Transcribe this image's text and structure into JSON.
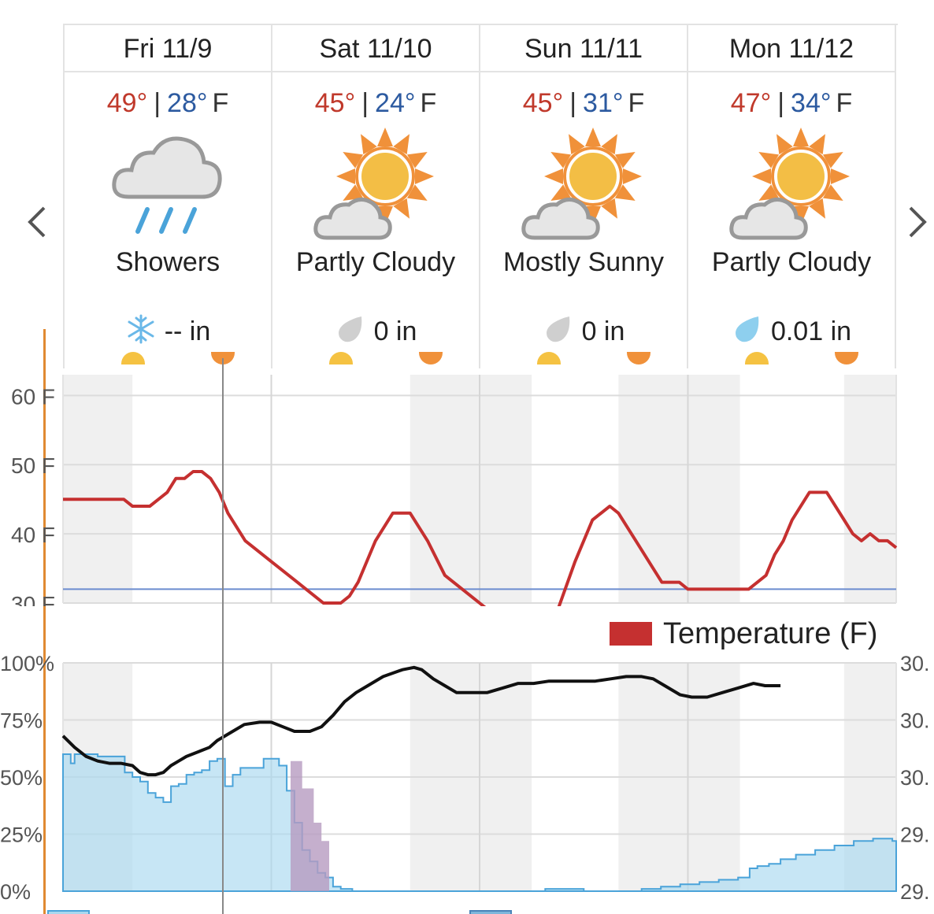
{
  "days": [
    {
      "label": "Fri 11/9",
      "hi": "49°",
      "lo": "28°",
      "unit": "F",
      "condition": "Showers",
      "icon": "cloud-rain-icon",
      "precip_icon": "snowflake-icon",
      "precip": "-- in"
    },
    {
      "label": "Sat 11/10",
      "hi": "45°",
      "lo": "24°",
      "unit": "F",
      "condition": "Partly Cloudy",
      "icon": "partly-cloudy-icon",
      "precip_icon": "drop-gray-icon",
      "precip": "0 in"
    },
    {
      "label": "Sun 11/11",
      "hi": "45°",
      "lo": "31°",
      "unit": "F",
      "condition": "Mostly Sunny",
      "icon": "mostly-sunny-icon",
      "precip_icon": "drop-gray-icon",
      "precip": "0 in"
    },
    {
      "label": "Mon 11/12",
      "hi": "47°",
      "lo": "34°",
      "unit": "F",
      "condition": "Partly Cloudy",
      "icon": "partly-cloudy-icon",
      "precip_icon": "drop-blue-icon",
      "precip": "0.01 in"
    }
  ],
  "separator": "|",
  "nav": {
    "prev": "chevron-left-icon",
    "next": "chevron-right-icon"
  },
  "colors": {
    "hi": "#c0392b",
    "lo": "#2c5aa0",
    "temp_line": "#c53030",
    "freeze_line": "#6b8ccf",
    "pressure": "#111111",
    "rain_fill": "#a9d8ef",
    "rain_stroke": "#4aa3d9",
    "snow_fill": "#b79bc0"
  },
  "legend": {
    "temperature": "Temperature (F)"
  },
  "chart_data": [
    {
      "type": "line",
      "title": "",
      "ylabels": [
        "60 F",
        "50 F",
        "40 F",
        "30 F"
      ],
      "ylim": [
        30,
        63
      ],
      "x_hours": [
        0,
        96
      ],
      "freeze_line": 32,
      "series": [
        {
          "name": "Temperature (F)",
          "points": [
            [
              0,
              45
            ],
            [
              7,
              45
            ],
            [
              8,
              44
            ],
            [
              10,
              44
            ],
            [
              12,
              46
            ],
            [
              13,
              48
            ],
            [
              14,
              48
            ],
            [
              15,
              49
            ],
            [
              16,
              49
            ],
            [
              17,
              48
            ],
            [
              18,
              46
            ],
            [
              19,
              43
            ],
            [
              21,
              39
            ],
            [
              24,
              36
            ],
            [
              27,
              33
            ],
            [
              29,
              31
            ],
            [
              30,
              30
            ],
            [
              32,
              30
            ],
            [
              33,
              31
            ],
            [
              34,
              33
            ],
            [
              36,
              39
            ],
            [
              38,
              43
            ],
            [
              40,
              43
            ],
            [
              42,
              39
            ],
            [
              44,
              34
            ],
            [
              46,
              32
            ],
            [
              48,
              30
            ],
            [
              49,
              29
            ],
            [
              null,
              null
            ],
            [
              57,
              29
            ],
            [
              59,
              36
            ],
            [
              61,
              42
            ],
            [
              63,
              44
            ],
            [
              64,
              43
            ],
            [
              66,
              39
            ],
            [
              68,
              35
            ],
            [
              69,
              33
            ],
            [
              71,
              33
            ],
            [
              72,
              32
            ],
            [
              79,
              32
            ],
            [
              81,
              34
            ],
            [
              82,
              37
            ],
            [
              83,
              39
            ],
            [
              84,
              42
            ],
            [
              86,
              46
            ],
            [
              88,
              46
            ],
            [
              90,
              42
            ],
            [
              91,
              40
            ],
            [
              92,
              39
            ],
            [
              93,
              40
            ],
            [
              94,
              39
            ],
            [
              95,
              39
            ],
            [
              96,
              38
            ]
          ]
        }
      ]
    },
    {
      "type": "area",
      "title": "",
      "ylabels": [
        "100%",
        "75%",
        "50%",
        "25%",
        "0%"
      ],
      "right_labels": [
        "30.",
        "30.",
        "30.",
        "29.",
        "29."
      ],
      "ylim": [
        0,
        100
      ],
      "x_hours": [
        0,
        96
      ],
      "series": [
        {
          "name": "pressure",
          "points": [
            [
              0,
              68
            ],
            [
              3,
              63
            ],
            [
              6,
              59
            ],
            [
              9,
              57
            ],
            [
              12,
              56
            ],
            [
              15,
              56
            ],
            [
              18,
              55
            ],
            [
              20,
              52
            ],
            [
              22,
              51
            ],
            [
              24,
              51
            ],
            [
              26,
              52
            ],
            [
              28,
              55
            ],
            [
              30,
              57
            ],
            [
              32,
              59
            ],
            [
              35,
              61
            ],
            [
              38,
              63
            ],
            [
              40,
              66
            ],
            [
              44,
              70
            ],
            [
              47,
              73
            ],
            [
              51,
              74
            ],
            [
              54,
              74
            ],
            [
              57,
              72
            ],
            [
              60,
              70
            ],
            [
              64,
              70
            ],
            [
              67,
              72
            ],
            [
              70,
              77
            ],
            [
              73,
              83
            ],
            [
              76,
              87
            ],
            [
              79,
              90
            ],
            [
              83,
              94
            ],
            [
              88,
              97
            ],
            [
              91,
              98
            ],
            [
              93,
              97
            ],
            [
              96,
              93
            ],
            [
              99,
              90
            ],
            [
              102,
              87
            ],
            [
              106,
              87
            ],
            [
              110,
              87
            ],
            [
              114,
              89
            ],
            [
              118,
              91
            ],
            [
              122,
              91
            ],
            [
              126,
              92
            ],
            [
              130,
              92
            ],
            [
              134,
              92
            ],
            [
              138,
              92
            ],
            [
              142,
              93
            ],
            [
              146,
              94
            ],
            [
              150,
              94
            ],
            [
              153,
              93
            ],
            [
              156,
              90
            ],
            [
              160,
              86
            ],
            [
              163,
              85
            ],
            [
              167,
              85
            ],
            [
              171,
              87
            ],
            [
              175,
              89
            ],
            [
              179,
              91
            ],
            [
              182,
              90
            ],
            [
              186,
              90
            ]
          ]
        },
        {
          "name": "rain",
          "points": [
            [
              0,
              60
            ],
            [
              2,
              56
            ],
            [
              3,
              60
            ],
            [
              9,
              59
            ],
            [
              15,
              59
            ],
            [
              16,
              52
            ],
            [
              18,
              50
            ],
            [
              20,
              48
            ],
            [
              22,
              43
            ],
            [
              24,
              41
            ],
            [
              26,
              39
            ],
            [
              28,
              46
            ],
            [
              30,
              47
            ],
            [
              32,
              51
            ],
            [
              34,
              52
            ],
            [
              36,
              53
            ],
            [
              38,
              57
            ],
            [
              40,
              58
            ],
            [
              42,
              46
            ],
            [
              44,
              51
            ],
            [
              46,
              54
            ],
            [
              50,
              54
            ],
            [
              52,
              58
            ],
            [
              54,
              58
            ],
            [
              56,
              55
            ],
            [
              58,
              44
            ],
            [
              60,
              30
            ],
            [
              62,
              18
            ],
            [
              64,
              13
            ],
            [
              66,
              8
            ],
            [
              68,
              6
            ],
            [
              70,
              2
            ],
            [
              72,
              1
            ],
            [
              75,
              0
            ],
            [
              120,
              0
            ],
            [
              125,
              1
            ],
            [
              130,
              1
            ],
            [
              135,
              0
            ],
            [
              145,
              0
            ],
            [
              150,
              1
            ],
            [
              155,
              2
            ],
            [
              160,
              3
            ],
            [
              165,
              4
            ],
            [
              170,
              5
            ],
            [
              175,
              6
            ],
            [
              178,
              10
            ],
            [
              180,
              11
            ],
            [
              183,
              12
            ],
            [
              186,
              14
            ],
            [
              190,
              16
            ],
            [
              195,
              18
            ],
            [
              200,
              20
            ],
            [
              205,
              22
            ],
            [
              210,
              23
            ],
            [
              215,
              22
            ]
          ]
        },
        {
          "name": "snow",
          "points": [
            [
              59,
              57
            ],
            [
              62,
              45
            ],
            [
              65,
              30
            ],
            [
              67,
              22
            ],
            [
              69,
              17
            ]
          ]
        }
      ]
    }
  ]
}
